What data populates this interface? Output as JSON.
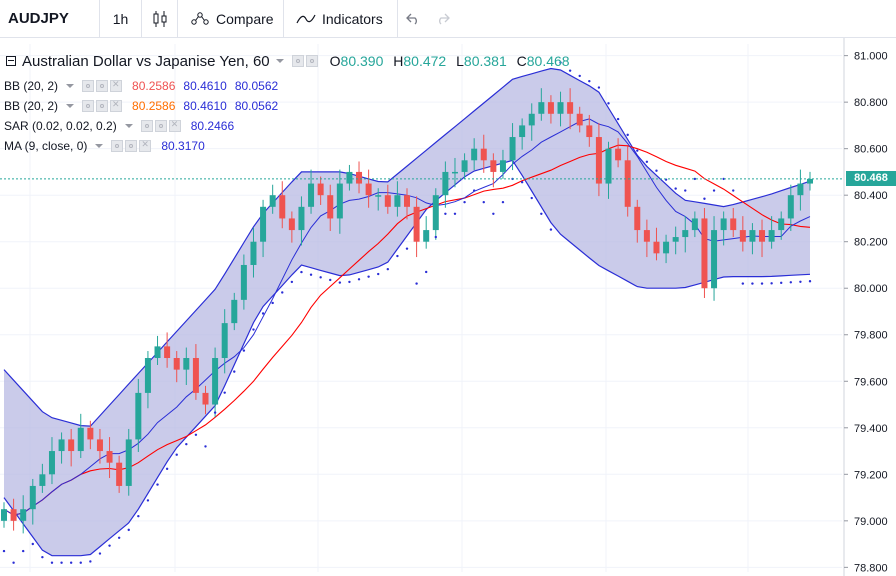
{
  "toolbar": {
    "symbol": "AUDJPY",
    "interval": "1h",
    "compare_label": "Compare",
    "indicators_label": "Indicators"
  },
  "legend": {
    "title": "Australian Dollar vs Japanise Yen, 60",
    "ohlc": {
      "o_key": "O",
      "o": "80.390",
      "h_key": "H",
      "h": "80.472",
      "l_key": "L",
      "l": "80.381",
      "c_key": "C",
      "c": "80.468"
    },
    "studies": [
      {
        "name": "BB (20, 2)",
        "values": [
          "80.2586",
          "80.4610",
          "80.0562"
        ]
      },
      {
        "name": "BB (20, 2)",
        "values": [
          "80.2586",
          "80.4610",
          "80.0562"
        ]
      },
      {
        "name": "SAR (0.02, 0.02, 0.2)",
        "values": [
          "80.2466"
        ]
      },
      {
        "name": "MA (9, close, 0)",
        "values": [
          "80.3170"
        ]
      }
    ]
  },
  "price_axis": {
    "last_price": "80.468",
    "ticks": [
      "81.000",
      "80.800",
      "80.600",
      "80.400",
      "80.200",
      "80.000",
      "79.800",
      "79.600",
      "79.400",
      "79.200",
      "79.000",
      "78.800"
    ]
  },
  "colors": {
    "up": "#26a69a",
    "down": "#ef5350",
    "bb_band": "#2a2ed6",
    "bb_fill": "#b8b9e3",
    "basis": "#ff0000",
    "ma": "#2a2ed6",
    "sar": "#2a2ed6"
  },
  "chart_data": {
    "type": "candlestick",
    "symbol": "AUDJPY",
    "interval": "60",
    "ylim": [
      78.78,
      81.05
    ],
    "yticks": [
      81.0,
      80.8,
      80.6,
      80.4,
      80.2,
      80.0,
      79.8,
      79.6,
      79.4,
      79.2,
      79.0,
      78.8
    ],
    "candles_close": [
      79.05,
      79.0,
      79.05,
      79.15,
      79.2,
      79.3,
      79.35,
      79.3,
      79.4,
      79.35,
      79.3,
      79.25,
      79.15,
      79.35,
      79.55,
      79.7,
      79.75,
      79.7,
      79.65,
      79.7,
      79.55,
      79.5,
      79.7,
      79.85,
      79.95,
      80.1,
      80.2,
      80.35,
      80.4,
      80.3,
      80.25,
      80.35,
      80.45,
      80.4,
      80.3,
      80.45,
      80.5,
      80.45,
      80.4,
      80.4,
      80.35,
      80.4,
      80.35,
      80.2,
      80.25,
      80.4,
      80.5,
      80.5,
      80.55,
      80.6,
      80.55,
      80.5,
      80.55,
      80.65,
      80.7,
      80.75,
      80.8,
      80.75,
      80.8,
      80.75,
      80.7,
      80.65,
      80.45,
      80.6,
      80.55,
      80.35,
      80.25,
      80.2,
      80.15,
      80.2,
      80.22,
      80.25,
      80.3,
      80.0,
      80.25,
      80.3,
      80.25,
      80.2,
      80.25,
      80.2,
      80.25,
      80.3,
      80.4,
      80.45,
      80.47
    ],
    "bb_upper_sample": [
      79.65,
      79.45,
      79.4,
      79.6,
      79.8,
      80.0,
      80.3,
      80.5,
      80.5,
      80.45,
      80.6,
      80.75,
      80.9,
      80.95,
      80.85,
      80.55,
      80.38,
      80.35,
      80.4,
      80.46
    ],
    "bb_lower_sample": [
      79.1,
      78.85,
      78.85,
      79.0,
      79.3,
      79.5,
      79.9,
      80.1,
      80.05,
      80.1,
      80.35,
      80.5,
      80.55,
      80.25,
      80.1,
      80.0,
      80.0,
      80.05,
      80.05,
      80.06
    ],
    "basis_value": 80.2586,
    "bb_upper_value": 80.461,
    "bb_lower_value": 80.0562,
    "sar_value": 80.2466,
    "ma_value": 80.317
  }
}
